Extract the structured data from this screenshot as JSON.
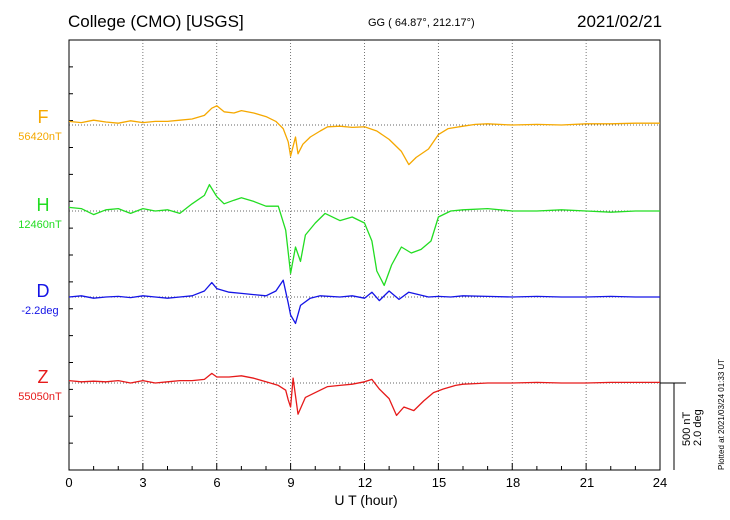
{
  "header": {
    "station": "College (CMO)  [USGS]",
    "coords": "GG ( 64.87°, 212.17°)",
    "date": "2021/02/21"
  },
  "chart_data": {
    "type": "line",
    "xlabel": "U T (hour)",
    "xlim": [
      0,
      24
    ],
    "xticks": [
      "0",
      "3",
      "6",
      "9",
      "12",
      "15",
      "18",
      "21",
      "24"
    ],
    "scale": {
      "field": "500 nT",
      "angle": "2.0 deg"
    },
    "plotted": "Plotted at 2021/03/24 01:33 UT",
    "series": [
      {
        "name": "F",
        "baseline": "56420nT",
        "color": "#f5a800",
        "offset": 0,
        "points": [
          [
            0,
            0.3
          ],
          [
            0.5,
            0.2
          ],
          [
            1,
            0.4
          ],
          [
            1.5,
            0.25
          ],
          [
            2,
            0.15
          ],
          [
            2.5,
            0.35
          ],
          [
            3,
            0.2
          ],
          [
            3.5,
            0.3
          ],
          [
            4,
            0.3
          ],
          [
            4.5,
            0.4
          ],
          [
            5,
            0.5
          ],
          [
            5.5,
            0.8
          ],
          [
            5.8,
            1.4
          ],
          [
            6,
            1.6
          ],
          [
            6.3,
            1.1
          ],
          [
            6.7,
            1.0
          ],
          [
            7,
            1.2
          ],
          [
            7.5,
            1.0
          ],
          [
            8,
            0.7
          ],
          [
            8.4,
            0.3
          ],
          [
            8.7,
            -0.3
          ],
          [
            8.9,
            -1.4
          ],
          [
            9.0,
            -2.6
          ],
          [
            9.2,
            -1.0
          ],
          [
            9.3,
            -2.4
          ],
          [
            9.5,
            -1.6
          ],
          [
            9.8,
            -1.0
          ],
          [
            10.2,
            -0.5
          ],
          [
            10.5,
            -0.15
          ],
          [
            11,
            -0.1
          ],
          [
            11.5,
            -0.2
          ],
          [
            12,
            -0.15
          ],
          [
            12.5,
            -0.5
          ],
          [
            13,
            -1.2
          ],
          [
            13.5,
            -2.2
          ],
          [
            13.8,
            -3.3
          ],
          [
            14.1,
            -2.7
          ],
          [
            14.6,
            -2.0
          ],
          [
            15,
            -0.8
          ],
          [
            15.4,
            -0.3
          ],
          [
            16,
            -0.1
          ],
          [
            16.5,
            0.05
          ],
          [
            17,
            0.1
          ],
          [
            18,
            0.0
          ],
          [
            19,
            0.05
          ],
          [
            20,
            0.0
          ],
          [
            21,
            0.1
          ],
          [
            22,
            0.1
          ],
          [
            23,
            0.15
          ],
          [
            24,
            0.15
          ]
        ]
      },
      {
        "name": "H",
        "baseline": "12460nT",
        "color": "#22dd22",
        "offset": 0,
        "points": [
          [
            0,
            0.3
          ],
          [
            0.5,
            0.2
          ],
          [
            1,
            -0.3
          ],
          [
            1.5,
            0.1
          ],
          [
            2,
            0.2
          ],
          [
            2.5,
            -0.2
          ],
          [
            3,
            0.2
          ],
          [
            3.5,
            0.0
          ],
          [
            4,
            0.1
          ],
          [
            4.5,
            -0.2
          ],
          [
            5,
            0.6
          ],
          [
            5.5,
            1.3
          ],
          [
            5.7,
            2.2
          ],
          [
            6,
            1.2
          ],
          [
            6.3,
            0.6
          ],
          [
            6.7,
            0.9
          ],
          [
            7,
            1.1
          ],
          [
            7.5,
            0.8
          ],
          [
            8,
            0.4
          ],
          [
            8.5,
            0.4
          ],
          [
            8.8,
            -1.6
          ],
          [
            9.0,
            -5.2
          ],
          [
            9.2,
            -3.0
          ],
          [
            9.4,
            -4.2
          ],
          [
            9.6,
            -2.0
          ],
          [
            10,
            -1.0
          ],
          [
            10.4,
            -0.2
          ],
          [
            11,
            -0.8
          ],
          [
            11.5,
            -0.5
          ],
          [
            12,
            -1.0
          ],
          [
            12.3,
            -2.5
          ],
          [
            12.5,
            -5.0
          ],
          [
            12.8,
            -6.2
          ],
          [
            13.1,
            -4.5
          ],
          [
            13.5,
            -3.0
          ],
          [
            13.9,
            -3.5
          ],
          [
            14.3,
            -3.2
          ],
          [
            14.7,
            -2.5
          ],
          [
            15,
            -0.5
          ],
          [
            15.5,
            0.0
          ],
          [
            16,
            0.1
          ],
          [
            17,
            0.2
          ],
          [
            18,
            0.0
          ],
          [
            19,
            0.0
          ],
          [
            20,
            0.1
          ],
          [
            21,
            0.0
          ],
          [
            22,
            -0.1
          ],
          [
            23,
            0.0
          ],
          [
            24,
            0.0
          ]
        ]
      },
      {
        "name": "D",
        "baseline": "-2.2deg",
        "color": "#1414e6",
        "offset": 0,
        "points": [
          [
            0,
            0.0
          ],
          [
            0.5,
            0.1
          ],
          [
            1,
            -0.1
          ],
          [
            1.5,
            0.0
          ],
          [
            2,
            0.05
          ],
          [
            2.5,
            -0.05
          ],
          [
            3,
            0.1
          ],
          [
            3.5,
            0.0
          ],
          [
            4,
            -0.1
          ],
          [
            4.5,
            0.0
          ],
          [
            5,
            0.1
          ],
          [
            5.5,
            0.5
          ],
          [
            5.8,
            1.2
          ],
          [
            6,
            0.7
          ],
          [
            6.5,
            0.4
          ],
          [
            7,
            0.3
          ],
          [
            7.5,
            0.2
          ],
          [
            8,
            0.1
          ],
          [
            8.4,
            0.5
          ],
          [
            8.7,
            1.4
          ],
          [
            8.9,
            -0.5
          ],
          [
            9.0,
            -1.5
          ],
          [
            9.2,
            -2.2
          ],
          [
            9.4,
            -0.7
          ],
          [
            9.8,
            -0.1
          ],
          [
            10.2,
            0.1
          ],
          [
            11,
            0.0
          ],
          [
            11.5,
            0.1
          ],
          [
            12,
            -0.1
          ],
          [
            12.3,
            0.4
          ],
          [
            12.6,
            -0.3
          ],
          [
            13.0,
            0.5
          ],
          [
            13.4,
            -0.2
          ],
          [
            13.8,
            0.4
          ],
          [
            14.2,
            0.2
          ],
          [
            14.6,
            0.0
          ],
          [
            15,
            0.05
          ],
          [
            15.5,
            0.0
          ],
          [
            16,
            0.1
          ],
          [
            17,
            0.05
          ],
          [
            18,
            0.0
          ],
          [
            19,
            0.05
          ],
          [
            20,
            0.0
          ],
          [
            21,
            0.0
          ],
          [
            22,
            0.05
          ],
          [
            23,
            0.0
          ],
          [
            24,
            0.0
          ]
        ]
      },
      {
        "name": "Z",
        "baseline": "55050nT",
        "color": "#e61a1a",
        "offset": 0,
        "points": [
          [
            0,
            0.2
          ],
          [
            0.5,
            0.1
          ],
          [
            1,
            0.15
          ],
          [
            1.5,
            0.1
          ],
          [
            2,
            0.2
          ],
          [
            2.5,
            0.0
          ],
          [
            3,
            0.2
          ],
          [
            3.5,
            0.0
          ],
          [
            4,
            0.1
          ],
          [
            4.5,
            0.2
          ],
          [
            5,
            0.2
          ],
          [
            5.5,
            0.3
          ],
          [
            5.8,
            0.8
          ],
          [
            6,
            0.5
          ],
          [
            6.5,
            0.5
          ],
          [
            7,
            0.6
          ],
          [
            7.5,
            0.4
          ],
          [
            8,
            0.1
          ],
          [
            8.5,
            -0.2
          ],
          [
            8.8,
            -0.6
          ],
          [
            8.9,
            -1.4
          ],
          [
            9.0,
            -2.0
          ],
          [
            9.1,
            0.4
          ],
          [
            9.3,
            -2.6
          ],
          [
            9.6,
            -1.2
          ],
          [
            10,
            -0.8
          ],
          [
            10.5,
            -0.3
          ],
          [
            11,
            -0.2
          ],
          [
            11.5,
            -0.1
          ],
          [
            12,
            0.1
          ],
          [
            12.3,
            0.3
          ],
          [
            12.6,
            -0.5
          ],
          [
            13,
            -1.3
          ],
          [
            13.3,
            -2.7
          ],
          [
            13.6,
            -2.0
          ],
          [
            14,
            -2.3
          ],
          [
            14.4,
            -1.5
          ],
          [
            14.8,
            -0.8
          ],
          [
            15.2,
            -0.5
          ],
          [
            15.7,
            -0.2
          ],
          [
            16,
            -0.1
          ],
          [
            16.5,
            -0.05
          ],
          [
            17,
            0.0
          ],
          [
            18,
            0.0
          ],
          [
            19,
            0.05
          ],
          [
            20,
            0.0
          ],
          [
            21,
            0.0
          ],
          [
            22,
            0.05
          ],
          [
            23,
            0.05
          ],
          [
            24,
            0.05
          ]
        ]
      }
    ]
  }
}
